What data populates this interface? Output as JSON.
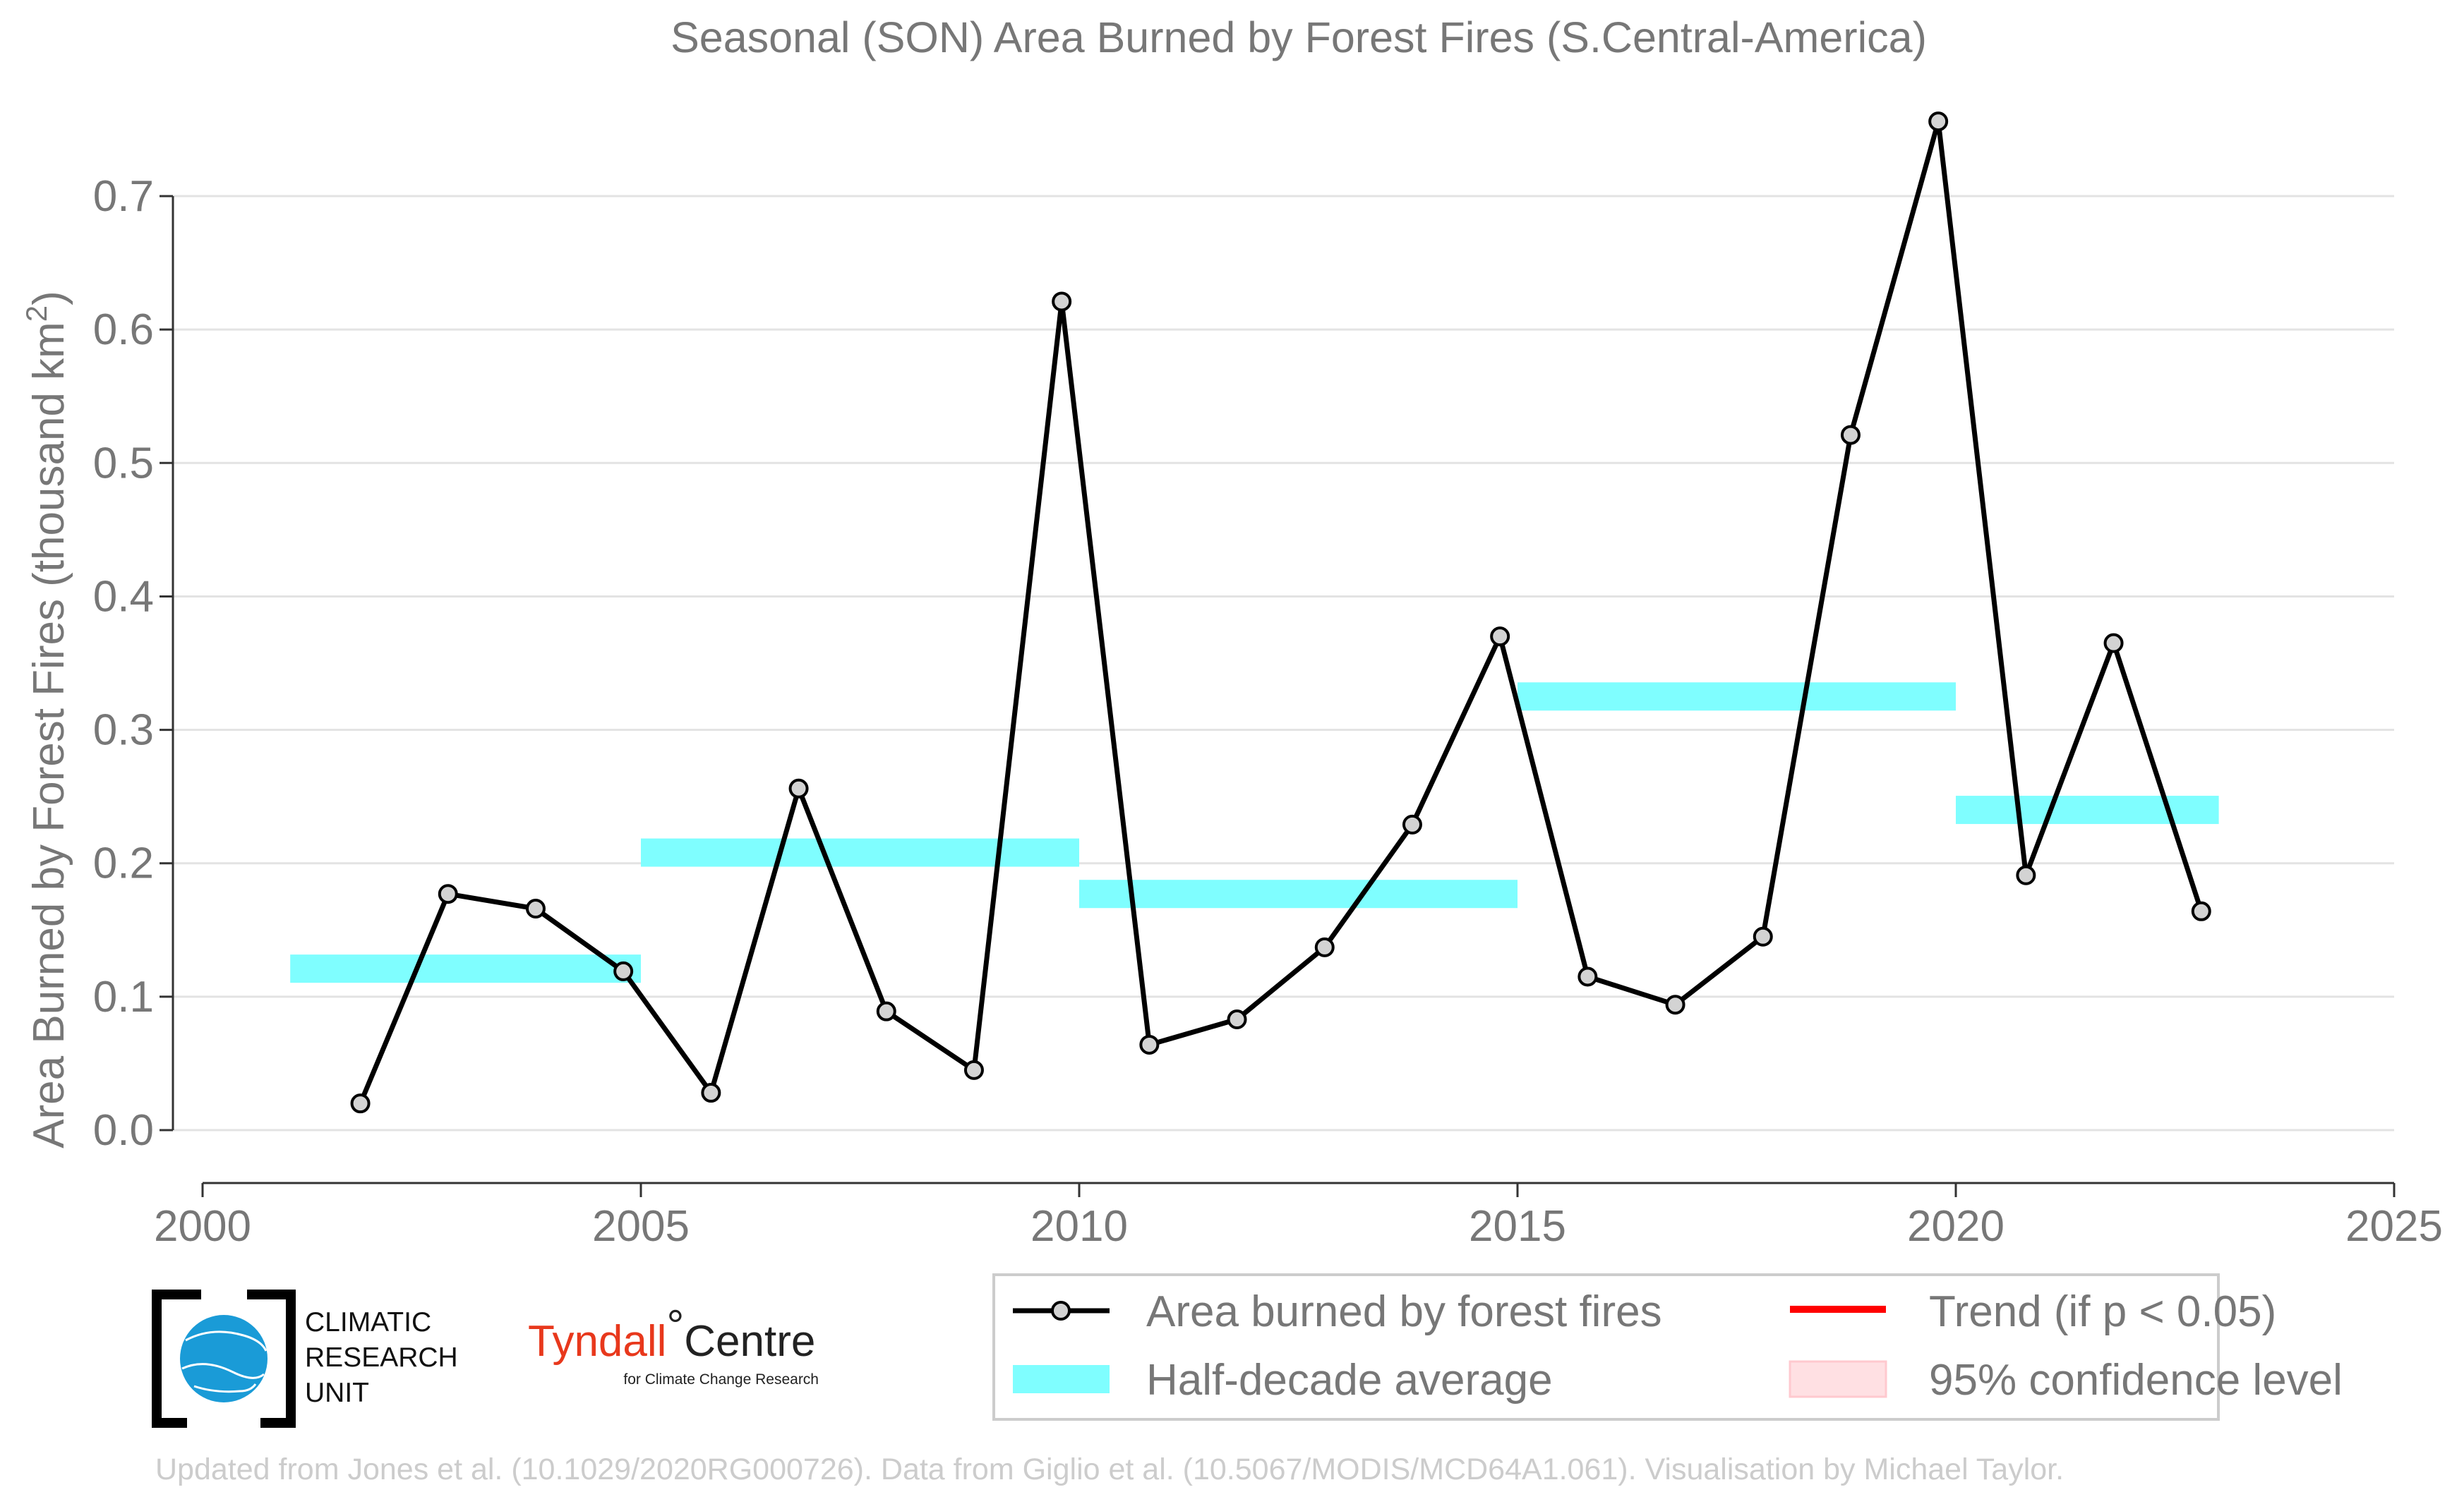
{
  "chart_data": {
    "type": "line",
    "title": "Seasonal (SON) Area Burned by Forest Fires (S.Central-America)",
    "ylabel": "Area Burned by Forest Fires (thousand km",
    "ylabel_sup": "2",
    "ylabel_close": ")",
    "xlim": [
      2000,
      2025
    ],
    "ylim": [
      0.0,
      0.7
    ],
    "x_ticks": [
      2000,
      2005,
      2010,
      2015,
      2020,
      2025
    ],
    "y_ticks": [
      0.0,
      0.1,
      0.2,
      0.3,
      0.4,
      0.5,
      0.6,
      0.7
    ],
    "x_tick_labels": [
      "2000",
      "2005",
      "2010",
      "2015",
      "2020",
      "2025"
    ],
    "y_tick_labels": [
      "0.0",
      "0.1",
      "0.2",
      "0.3",
      "0.4",
      "0.5",
      "0.6",
      "0.7"
    ],
    "grid": "horizontal",
    "series": [
      {
        "name": "Area burned by forest fires",
        "color": "#000000",
        "marker_fill": "#d3d3d3",
        "x": [
          2001.8,
          2002.8,
          2003.8,
          2004.8,
          2005.8,
          2006.8,
          2007.8,
          2008.8,
          2009.8,
          2010.8,
          2011.8,
          2012.8,
          2013.8,
          2014.8,
          2015.8,
          2016.8,
          2017.8,
          2018.8,
          2019.8,
          2020.8,
          2021.8,
          2022.8
        ],
        "y": [
          0.02,
          0.177,
          0.166,
          0.119,
          0.028,
          0.256,
          0.089,
          0.045,
          0.621,
          0.064,
          0.083,
          0.137,
          0.229,
          0.37,
          0.115,
          0.094,
          0.145,
          0.521,
          0.756,
          0.191,
          0.365,
          0.164
        ]
      }
    ],
    "half_decade_average": {
      "name": "Half-decade average",
      "color": "#7ffeff",
      "segments": [
        {
          "x0": 2001.0,
          "x1": 2005.0,
          "y": 0.121
        },
        {
          "x0": 2005.0,
          "x1": 2010.0,
          "y": 0.208
        },
        {
          "x0": 2010.0,
          "x1": 2015.0,
          "y": 0.177
        },
        {
          "x0": 2015.0,
          "x1": 2020.0,
          "y": 0.325
        },
        {
          "x0": 2020.0,
          "x1": 2023.0,
          "y": 0.24
        }
      ]
    },
    "legend": {
      "placement": "bottom-right",
      "items": [
        {
          "label": "Area burned by forest fires",
          "kind": "line-marker",
          "color": "#000000"
        },
        {
          "label": "Trend (if p < 0.05)",
          "kind": "line",
          "color": "#ff0000"
        },
        {
          "label": "Half-decade average",
          "kind": "band",
          "color": "#7ffeff"
        },
        {
          "label": "95% confidence level",
          "kind": "patch",
          "color": "#ffe0e3"
        }
      ]
    }
  },
  "logos": {
    "cru_lines": [
      "CLIMATIC",
      "RESEARCH",
      "UNIT"
    ],
    "tyndall_main": "Tyndall",
    "tyndall_degree": "°",
    "tyndall_centre": "Centre",
    "tyndall_sub": "for Climate Change Research"
  },
  "credit": "Updated from Jones et al. (10.1029/2020RG000726). Data from Giglio et al. (10.5067/MODIS/MCD64A1.061). Visualisation by Michael Taylor."
}
